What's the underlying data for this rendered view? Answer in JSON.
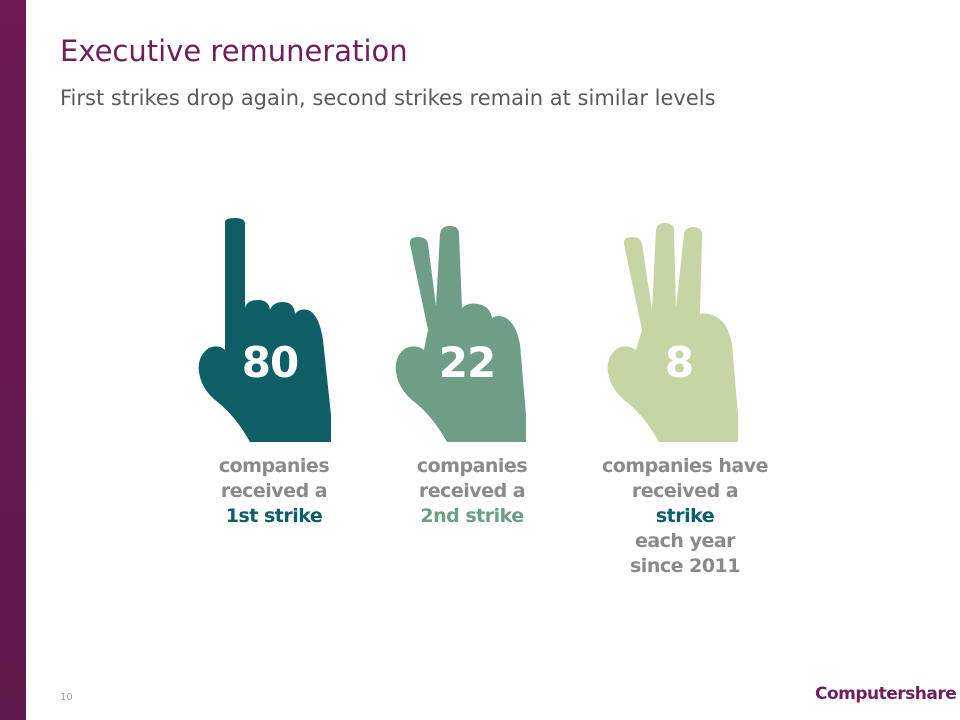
{
  "slide": {
    "title": "Executive remuneration",
    "subtitle": "First strikes drop again, second strikes remain at similar levels",
    "page_number": "10",
    "logo_text": "Computershare"
  },
  "colors": {
    "sidebar": "#6e1a54",
    "title": "#6e1f5b",
    "hand_1": "#0e5f65",
    "hand_2": "#6e9e86",
    "hand_3": "#c5d6a4"
  },
  "stats": [
    {
      "value": "80",
      "line1": "companies",
      "line2": "received a",
      "highlight": "1st strike",
      "after_highlight": "",
      "line4": "",
      "icon": "one-finger-hand-icon"
    },
    {
      "value": "22",
      "line1": "companies",
      "line2": "received a",
      "highlight": "2nd strike",
      "after_highlight": "",
      "line4": "",
      "icon": "two-finger-hand-icon"
    },
    {
      "value": "8",
      "line1": "companies have",
      "line2": "received a",
      "highlight": "strike",
      "after_highlight": " each year",
      "line4": "since 2011",
      "icon": "three-finger-hand-icon"
    }
  ]
}
